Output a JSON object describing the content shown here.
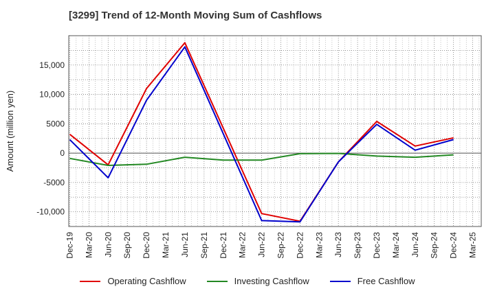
{
  "chart_data": {
    "type": "line",
    "title": "[3299]  Trend of 12-Month Moving Sum of Cashflows",
    "xlabel": "",
    "ylabel": "Amount (million yen)",
    "ylim": [
      -12500,
      20000
    ],
    "yticks": [
      15000,
      10000,
      5000,
      0,
      -5000,
      -10000
    ],
    "ytick_labels": [
      "15,000",
      "10,000",
      "5000",
      "0",
      "-5000",
      "-10,000"
    ],
    "categories": [
      "Dec-19",
      "Mar-20",
      "Jun-20",
      "Sep-20",
      "Dec-20",
      "Mar-21",
      "Jun-21",
      "Sep-21",
      "Dec-21",
      "Mar-22",
      "Jun-22",
      "Sep-22",
      "Dec-22",
      "Mar-23",
      "Jun-23",
      "Sep-23",
      "Dec-23",
      "Mar-24",
      "Jun-24",
      "Sep-24",
      "Dec-24",
      "Mar-25"
    ],
    "grid": true,
    "legend_position": "bottom",
    "series": [
      {
        "name": "Operating Cashflow",
        "color": "#e00000",
        "points": [
          [
            0,
            3200
          ],
          [
            2,
            -2000
          ],
          [
            4,
            11000
          ],
          [
            6,
            18800
          ],
          [
            10,
            -10300
          ],
          [
            12,
            -11600
          ],
          [
            14,
            -1500
          ],
          [
            16,
            5400
          ],
          [
            18,
            1200
          ],
          [
            20,
            2600
          ]
        ]
      },
      {
        "name": "Investing Cashflow",
        "color": "#228822",
        "points": [
          [
            0,
            -900
          ],
          [
            2,
            -2100
          ],
          [
            4,
            -1900
          ],
          [
            6,
            -700
          ],
          [
            8,
            -1200
          ],
          [
            10,
            -1200
          ],
          [
            12,
            -100
          ],
          [
            14,
            -50
          ],
          [
            16,
            -500
          ],
          [
            18,
            -700
          ],
          [
            20,
            -300
          ]
        ]
      },
      {
        "name": "Free Cashflow",
        "color": "#0000cc",
        "points": [
          [
            0,
            2300
          ],
          [
            2,
            -4200
          ],
          [
            4,
            9000
          ],
          [
            6,
            18100
          ],
          [
            10,
            -11500
          ],
          [
            12,
            -11700
          ],
          [
            14,
            -1500
          ],
          [
            16,
            4900
          ],
          [
            18,
            500
          ],
          [
            20,
            2300
          ]
        ]
      }
    ]
  }
}
